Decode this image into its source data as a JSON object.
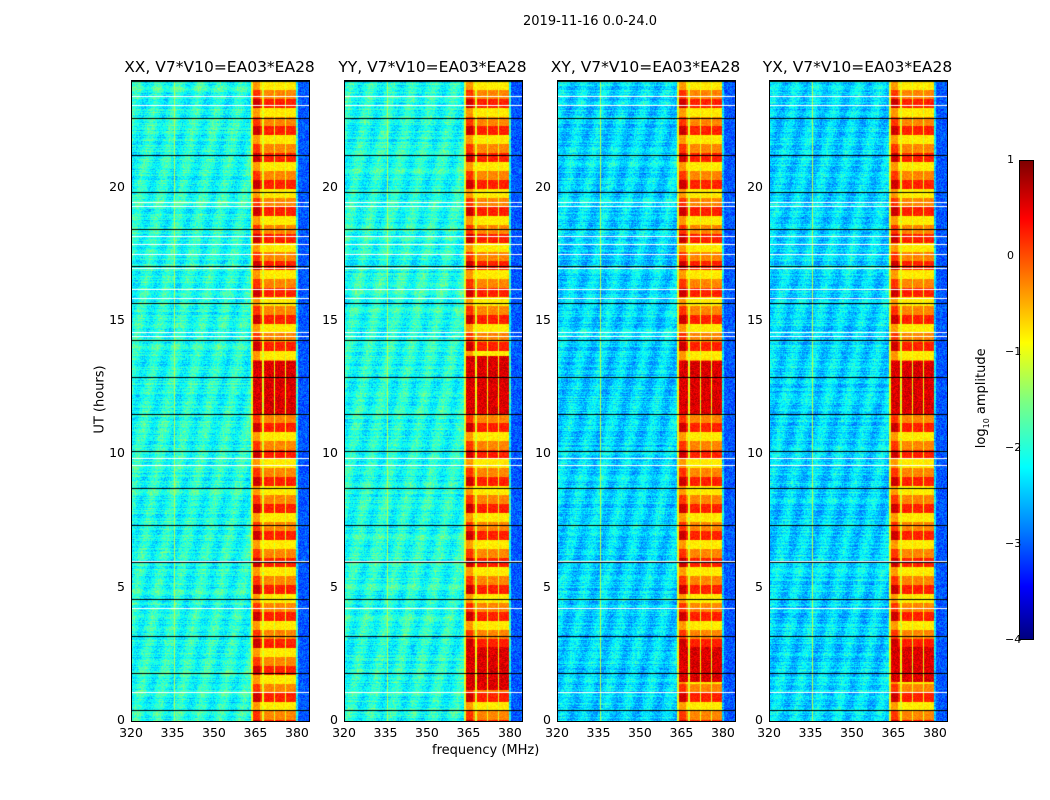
{
  "suptitle": "2019-11-16 0.0-24.0",
  "chart_data": [
    {
      "type": "heatmap",
      "title": "XX, V7*V10=EA03*EA28",
      "xlabel": "frequency (MHz)",
      "ylabel": "UT (hours)",
      "xlim": [
        320,
        384
      ],
      "ylim": [
        0,
        24
      ],
      "xticks": [
        "320",
        "335",
        "350",
        "365",
        "380"
      ],
      "yticks": [
        "0",
        "5",
        "10",
        "15",
        "20"
      ],
      "rfi_band_mhz": [
        363,
        379
      ],
      "strong_rfi_hours": [
        [
          11.5,
          13.5
        ]
      ],
      "seed": 1
    },
    {
      "type": "heatmap",
      "title": "YY, V7*V10=EA03*EA28",
      "xlabel": "frequency (MHz)",
      "ylabel": "UT (hours)",
      "xlim": [
        320,
        384
      ],
      "ylim": [
        0,
        24
      ],
      "xticks": [
        "320",
        "335",
        "350",
        "365",
        "380"
      ],
      "yticks": [
        "0",
        "5",
        "10",
        "15",
        "20"
      ],
      "rfi_band_mhz": [
        363,
        379
      ],
      "strong_rfi_hours": [
        [
          11.5,
          13.7
        ],
        [
          1.2,
          2.8
        ]
      ],
      "seed": 2
    },
    {
      "type": "heatmap",
      "title": "XY, V7*V10=EA03*EA28",
      "xlabel": "frequency (MHz)",
      "ylabel": "UT (hours)",
      "xlim": [
        320,
        384
      ],
      "ylim": [
        0,
        24
      ],
      "xticks": [
        "320",
        "335",
        "350",
        "365",
        "380"
      ],
      "yticks": [
        "0",
        "5",
        "10",
        "15",
        "20"
      ],
      "rfi_band_mhz": [
        363,
        379
      ],
      "strong_rfi_hours": [
        [
          11.5,
          13.5
        ],
        [
          1.5,
          2.8
        ]
      ],
      "seed": 3
    },
    {
      "type": "heatmap",
      "title": "YX, V7*V10=EA03*EA28",
      "xlabel": "frequency (MHz)",
      "ylabel": "UT (hours)",
      "xlim": [
        320,
        384
      ],
      "ylim": [
        0,
        24
      ],
      "xticks": [
        "320",
        "335",
        "350",
        "365",
        "380"
      ],
      "yticks": [
        "0",
        "5",
        "10",
        "15",
        "20"
      ],
      "rfi_band_mhz": [
        363,
        379
      ],
      "strong_rfi_hours": [
        [
          11.5,
          13.5
        ],
        [
          1.5,
          2.8
        ]
      ],
      "seed": 4
    }
  ],
  "colorbar": {
    "label": "log10 amplitude",
    "label_main": "log",
    "label_sub": "10",
    "label_rest": " amplitude",
    "range": [
      -4,
      1
    ],
    "ticks": [
      "1",
      "0",
      "−1",
      "−2",
      "−3",
      "−4"
    ]
  },
  "flagged_hours": [
    23.45,
    23.1,
    19.45,
    19.3,
    18.2,
    17.9,
    17.5,
    17.0,
    16.2,
    15.85,
    14.6,
    14.45,
    9.85,
    9.6,
    6.0,
    4.25,
    1.1
  ],
  "xlabel": "frequency (MHz)",
  "ylabel": "UT (hours)"
}
